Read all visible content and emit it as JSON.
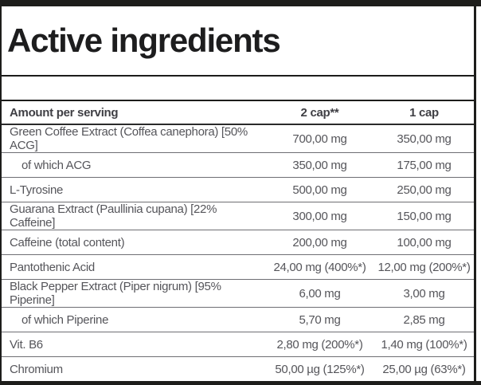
{
  "title": "Active ingredients",
  "colors": {
    "frame": "#1d1d1b",
    "title_text": "#1d1d1e",
    "header_text": "#3f3f44",
    "row_text": "#55555a",
    "row_divider": "#6e6e73",
    "background": "#ffffff"
  },
  "table": {
    "columns": {
      "label": "Amount per serving",
      "serving2": "2 cap**",
      "serving1": "1 cap"
    },
    "rows": [
      {
        "label": "Green Coffee Extract (Coffea canephora) [50% ACG]",
        "per2": "700,00 mg",
        "per1": "350,00 mg",
        "indent": false
      },
      {
        "label": "of which ACG",
        "per2": "350,00 mg",
        "per1": "175,00 mg",
        "indent": true
      },
      {
        "label": "L-Tyrosine",
        "per2": "500,00 mg",
        "per1": "250,00 mg",
        "indent": false
      },
      {
        "label": "Guarana Extract (Paullinia cupana) [22% Caffeine]",
        "per2": "300,00 mg",
        "per1": "150,00 mg",
        "indent": false
      },
      {
        "label": "Caffeine (total content)",
        "per2": "200,00 mg",
        "per1": "100,00 mg",
        "indent": false
      },
      {
        "label": "Pantothenic Acid",
        "per2": "24,00 mg (400%*)",
        "per1": "12,00 mg (200%*)",
        "indent": false
      },
      {
        "label": "Black Pepper Extract (Piper nigrum) [95% Piperine]",
        "per2": "6,00 mg",
        "per1": "3,00 mg",
        "indent": false
      },
      {
        "label": "of which Piperine",
        "per2": "5,70 mg",
        "per1": "2,85 mg",
        "indent": true
      },
      {
        "label": "Vit. B6",
        "per2": "2,80 mg (200%*)",
        "per1": "1,40 mg (100%*)",
        "indent": false
      },
      {
        "label": "Chromium",
        "per2": "50,00 µg (125%*)",
        "per1": "25,00 µg (63%*)",
        "indent": false
      }
    ]
  }
}
